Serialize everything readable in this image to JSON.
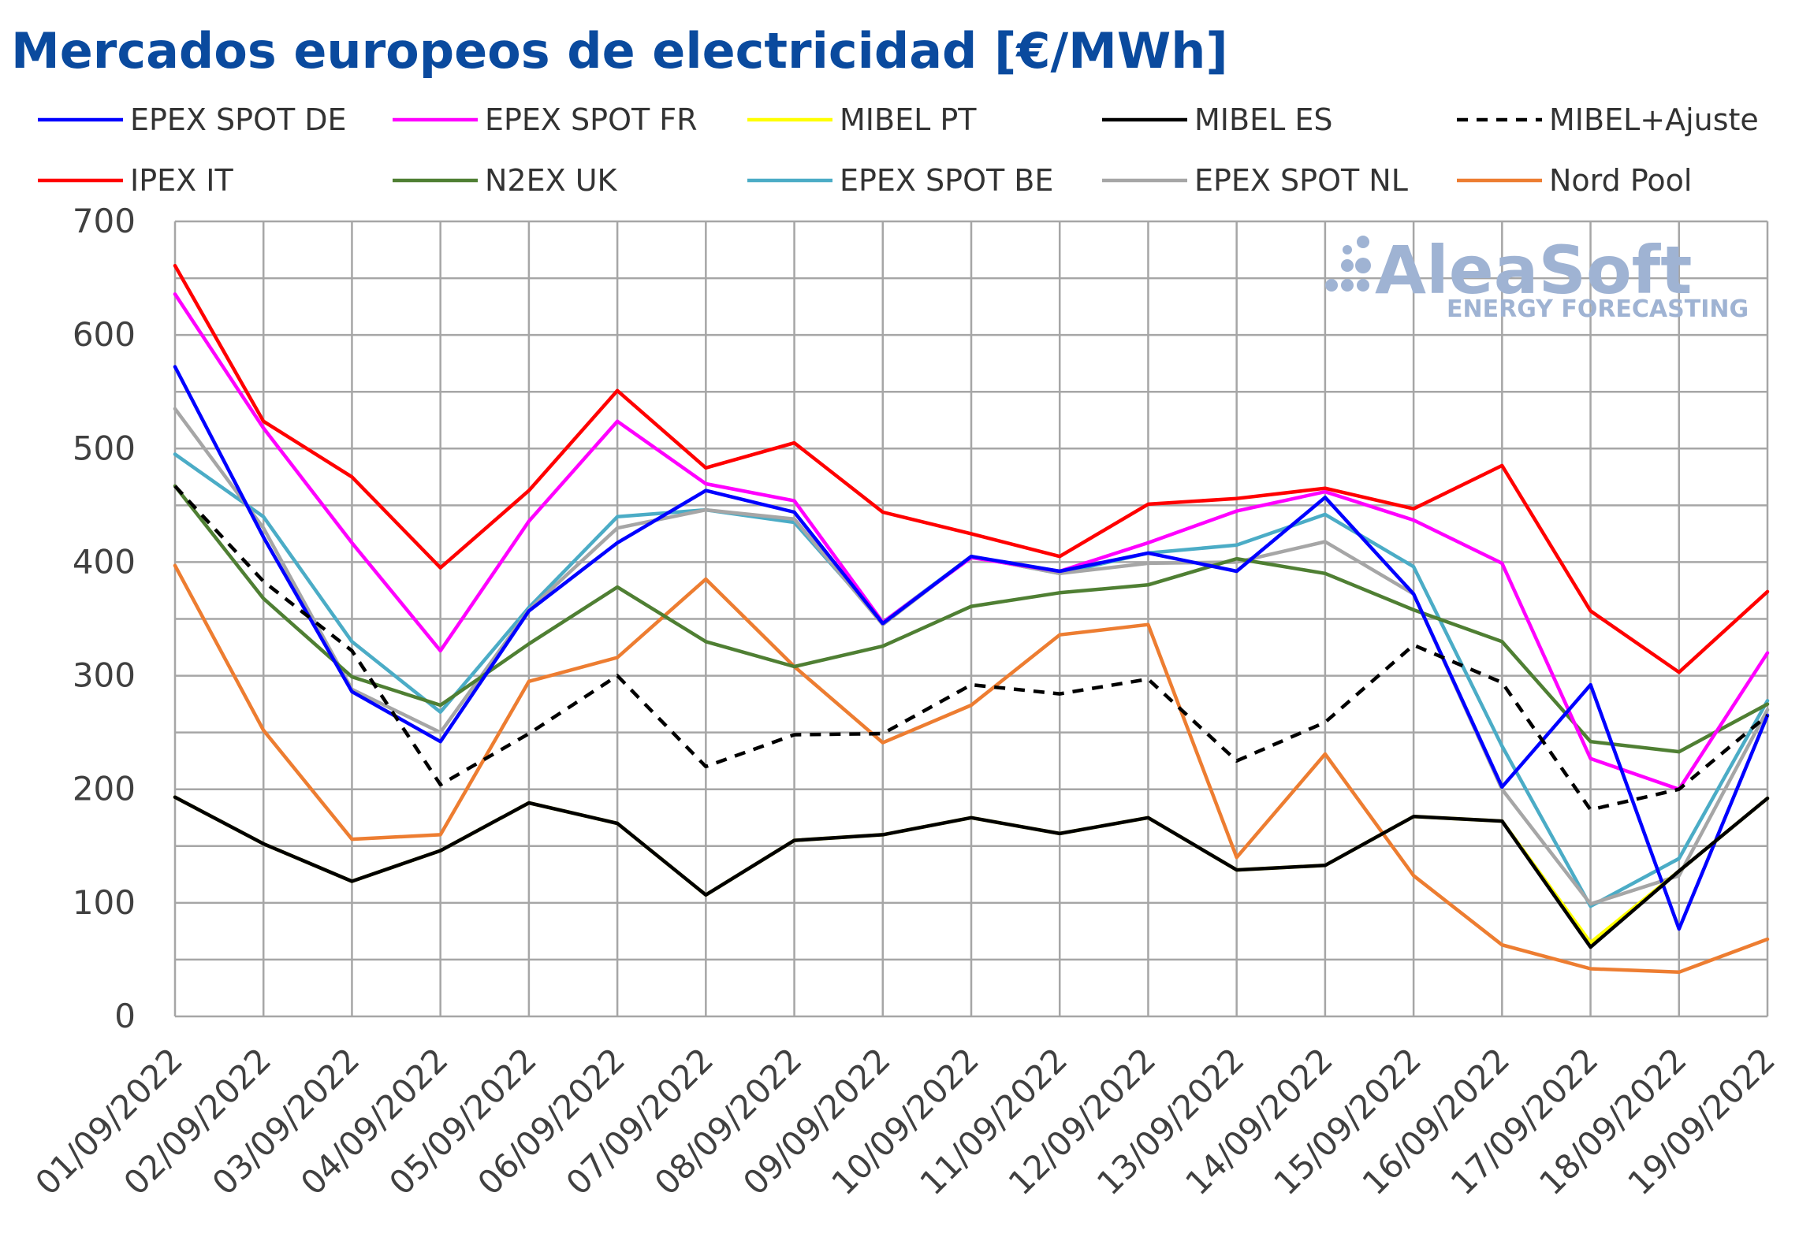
{
  "chart_data": {
    "type": "line",
    "title": "Mercados europeos de electricidad [€/MWh]",
    "xlabel": "",
    "ylabel": "",
    "ylim": [
      0,
      700
    ],
    "yticks": [
      0,
      100,
      200,
      300,
      400,
      500,
      600,
      700
    ],
    "grid": true,
    "legend_position": "top",
    "categories": [
      "01/09/2022",
      "02/09/2022",
      "03/09/2022",
      "04/09/2022",
      "05/09/2022",
      "06/09/2022",
      "07/09/2022",
      "08/09/2022",
      "09/09/2022",
      "10/09/2022",
      "11/09/2022",
      "12/09/2022",
      "13/09/2022",
      "14/09/2022",
      "15/09/2022",
      "16/09/2022",
      "17/09/2022",
      "18/09/2022",
      "19/09/2022"
    ],
    "series": [
      {
        "name": "EPEX SPOT DE",
        "color": "#0000ff",
        "dash": "solid",
        "values": [
          572,
          422,
          286,
          242,
          357,
          417,
          463,
          444,
          346,
          405,
          392,
          408,
          392,
          457,
          372,
          202,
          292,
          77,
          265
        ]
      },
      {
        "name": "EPEX SPOT FR",
        "color": "#ff00ff",
        "dash": "solid",
        "values": [
          636,
          518,
          417,
          322,
          436,
          524,
          469,
          454,
          347,
          404,
          392,
          417,
          445,
          462,
          437,
          399,
          227,
          200,
          320
        ]
      },
      {
        "name": "MIBEL PT",
        "color": "#ffff00",
        "dash": "solid",
        "values": [
          193,
          152,
          119,
          146,
          188,
          170,
          107,
          155,
          160,
          175,
          161,
          175,
          129,
          133,
          176,
          172,
          65,
          128,
          192
        ]
      },
      {
        "name": "MIBEL ES",
        "color": "#000000",
        "dash": "solid",
        "values": [
          193,
          152,
          119,
          146,
          188,
          170,
          107,
          155,
          160,
          175,
          161,
          175,
          129,
          133,
          176,
          172,
          61,
          128,
          192
        ]
      },
      {
        "name": "MIBEL+Ajuste",
        "color": "#000000",
        "dash": "dashed",
        "values": [
          467,
          383,
          322,
          204,
          249,
          300,
          220,
          248,
          249,
          292,
          284,
          297,
          225,
          259,
          327,
          294,
          182,
          200,
          265
        ]
      },
      {
        "name": "IPEX IT",
        "color": "#ff0000",
        "dash": "solid",
        "values": [
          661,
          524,
          475,
          395,
          463,
          551,
          483,
          505,
          444,
          425,
          405,
          451,
          456,
          465,
          447,
          485,
          357,
          303,
          374
        ]
      },
      {
        "name": "N2EX UK",
        "color": "#4f7f33",
        "dash": "solid",
        "values": [
          467,
          368,
          299,
          274,
          328,
          378,
          330,
          308,
          326,
          361,
          373,
          380,
          403,
          390,
          358,
          330,
          242,
          233,
          275
        ]
      },
      {
        "name": "EPEX SPOT BE",
        "color": "#4bacc6",
        "dash": "solid",
        "values": [
          495,
          440,
          330,
          268,
          360,
          440,
          446,
          435,
          347,
          405,
          390,
          408,
          415,
          442,
          396,
          238,
          97,
          139,
          278
        ]
      },
      {
        "name": "EPEX SPOT NL",
        "color": "#a6a6a6",
        "dash": "solid",
        "values": [
          535,
          430,
          288,
          250,
          358,
          430,
          446,
          438,
          345,
          405,
          390,
          399,
          400,
          418,
          372,
          200,
          99,
          124,
          270
        ]
      },
      {
        "name": "Nord Pool",
        "color": "#ed7d31",
        "dash": "solid",
        "values": [
          397,
          252,
          156,
          160,
          295,
          316,
          385,
          308,
          241,
          274,
          336,
          345,
          140,
          231,
          124,
          63,
          42,
          39,
          68
        ]
      }
    ]
  },
  "watermark": {
    "brand": "AleaSoft",
    "tagline": "ENERGY FORECASTING"
  }
}
